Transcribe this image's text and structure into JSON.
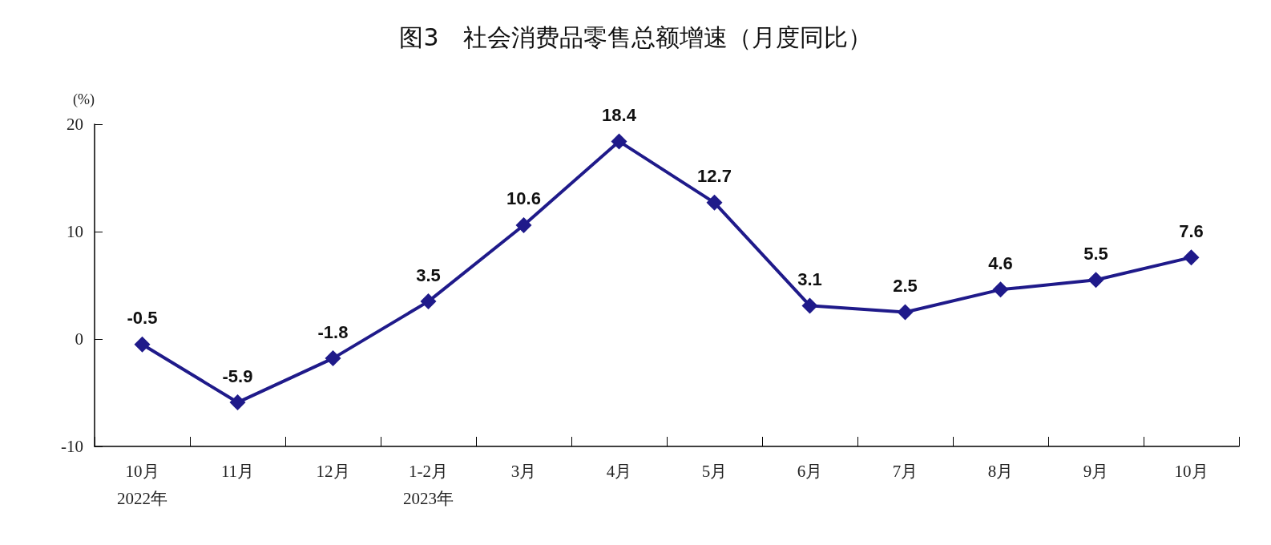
{
  "chart_data": {
    "type": "line",
    "title": "图3　社会消费品零售总额增速（月度同比）",
    "ylabel": "(%)",
    "categories": [
      "10月\n2022年",
      "11月",
      "12月",
      "1-2月\n2023年",
      "3月",
      "4月",
      "5月",
      "6月",
      "7月",
      "8月",
      "9月",
      "10月"
    ],
    "series": [
      {
        "color": "#1f1a8a",
        "values": [
          -0.5,
          -5.9,
          -1.8,
          3.5,
          10.6,
          18.4,
          12.7,
          3.1,
          2.5,
          4.6,
          5.5,
          7.6
        ]
      }
    ],
    "ylim": [
      -10,
      20
    ],
    "yticks": [
      -10,
      0,
      10,
      20
    ],
    "grid": false,
    "marker": "diamond",
    "line_style": "solid",
    "data_labels": true
  }
}
